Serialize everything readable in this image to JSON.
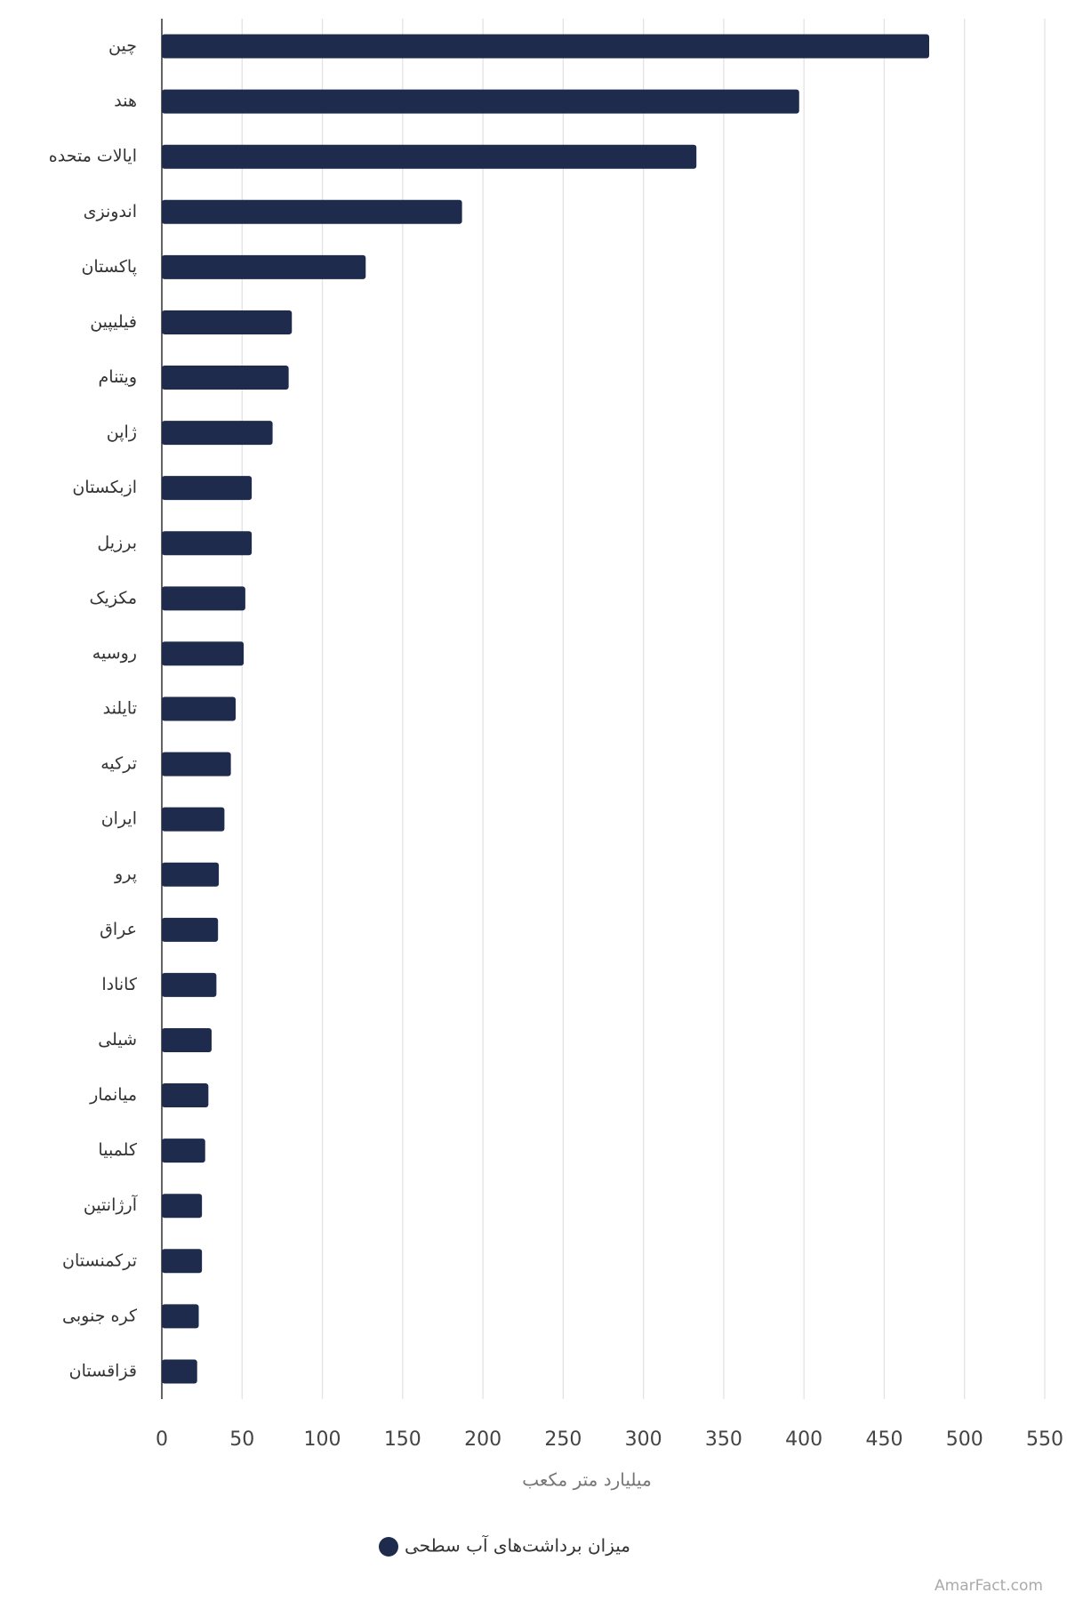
{
  "chart_data": {
    "type": "bar",
    "orientation": "horizontal",
    "categories": [
      "چین",
      "هند",
      "ایالات متحده",
      "اندونزی",
      "پاکستان",
      "فیلیپین",
      "ویتنام",
      "ژاپن",
      "ازبکستان",
      "برزیل",
      "مکزیک",
      "روسیه",
      "تایلند",
      "ترکیه",
      "ایران",
      "پرو",
      "عراق",
      "کانادا",
      "شیلی",
      "میانمار",
      "کلمبیا",
      "آرژانتین",
      "ترکمنستان",
      "کره جنوبی",
      "قزاقستان"
    ],
    "series": [
      {
        "name": "میزان برداشت‌های آب سطحی",
        "color": "#1f2b4d",
        "values": [
          478,
          397,
          333,
          187,
          127,
          81,
          79,
          69,
          56,
          56,
          52,
          51,
          46,
          43,
          39,
          35.5,
          35,
          34,
          31,
          29,
          27,
          25,
          25,
          23,
          22
        ]
      }
    ],
    "x_label": "میلیارد متر مکعب",
    "xlim": [
      0,
      550
    ],
    "xticks": [
      0,
      50,
      100,
      150,
      200,
      250,
      300,
      350,
      400,
      450,
      500,
      550
    ],
    "grid": true,
    "legend": "bottom",
    "watermark": "AmarFact.com"
  }
}
